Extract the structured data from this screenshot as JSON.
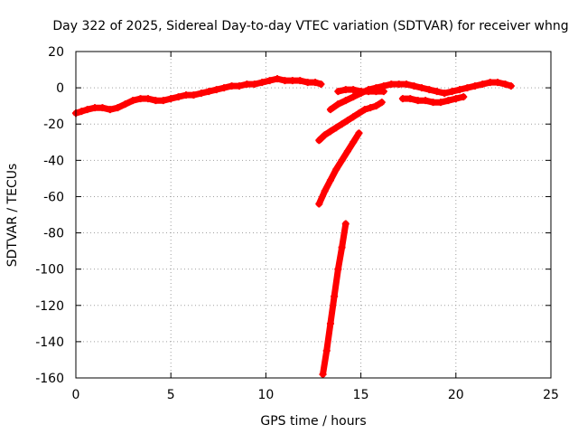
{
  "chart_data": {
    "type": "scatter",
    "title": "Day 322 of 2025, Sidereal Day-to-day VTEC variation (SDTVAR) for receiver whng",
    "xlabel": "GPS time / hours",
    "ylabel": "SDTVAR / TECUs",
    "xlim": [
      0,
      25
    ],
    "ylim": [
      -160,
      20
    ],
    "xticks": [
      0,
      5,
      10,
      15,
      20,
      25
    ],
    "yticks": [
      20,
      0,
      -20,
      -40,
      -60,
      -80,
      -100,
      -120,
      -140,
      -160
    ],
    "grid": true,
    "marker": "plus",
    "series_color": "#ff0000",
    "series": [
      {
        "x": [
          0.0,
          0.3,
          0.6,
          1.0,
          1.4,
          1.8,
          2.2,
          2.6,
          3.0,
          3.4,
          3.8,
          4.2,
          4.6,
          5.0,
          5.4,
          5.8,
          6.2,
          6.6,
          7.0,
          7.4,
          7.8,
          8.2,
          8.6,
          9.0,
          9.4,
          9.8,
          10.2,
          10.6,
          11.0,
          11.4,
          11.8,
          12.2,
          12.6,
          12.9
        ],
        "y": [
          -14,
          -13,
          -12,
          -11,
          -11,
          -12,
          -11,
          -9,
          -7,
          -6,
          -6,
          -7,
          -7,
          -6,
          -5,
          -4,
          -4,
          -3,
          -2,
          -1,
          0,
          1,
          1,
          2,
          2,
          3,
          4,
          5,
          4,
          4,
          4,
          3,
          3,
          2
        ]
      },
      {
        "x": [
          13.0,
          13.2,
          13.4,
          13.6,
          13.8,
          14.0,
          14.2
        ],
        "y": [
          -158,
          -145,
          -130,
          -115,
          -100,
          -88,
          -75
        ]
      },
      {
        "x": [
          12.8,
          13.1,
          13.4,
          13.7,
          14.0,
          14.3,
          14.6,
          14.9
        ],
        "y": [
          -64,
          -57,
          -51,
          -45,
          -40,
          -35,
          -30,
          -25
        ]
      },
      {
        "x": [
          12.8,
          13.1,
          13.4,
          13.7,
          14.0,
          14.3,
          14.6,
          14.9,
          15.2,
          15.5,
          15.8,
          16.1
        ],
        "y": [
          -29,
          -26,
          -24,
          -22,
          -20,
          -18,
          -16,
          -14,
          -12,
          -11,
          -10,
          -8
        ]
      },
      {
        "x": [
          13.4,
          13.8,
          14.2,
          14.6,
          15.0,
          15.4,
          15.8,
          16.2,
          16.6,
          17.0,
          17.4,
          17.8,
          18.2,
          18.6,
          19.0,
          19.4,
          19.8,
          20.2,
          20.6,
          21.0,
          21.4,
          21.8,
          22.2,
          22.6,
          22.9
        ],
        "y": [
          -12,
          -9,
          -7,
          -5,
          -3,
          -1,
          0,
          1,
          2,
          2,
          2,
          1,
          0,
          -1,
          -2,
          -3,
          -2,
          -1,
          0,
          1,
          2,
          3,
          3,
          2,
          1
        ]
      },
      {
        "x": [
          13.8,
          14.2,
          14.6,
          15.0,
          15.4,
          15.8,
          16.2
        ],
        "y": [
          -2,
          -1,
          -1,
          -2,
          -2,
          -2,
          -2
        ]
      },
      {
        "x": [
          17.2,
          17.6,
          18.0,
          18.4,
          18.8,
          19.2,
          19.6,
          20.0,
          20.4
        ],
        "y": [
          -6,
          -6,
          -7,
          -7,
          -8,
          -8,
          -7,
          -6,
          -5
        ]
      }
    ]
  }
}
